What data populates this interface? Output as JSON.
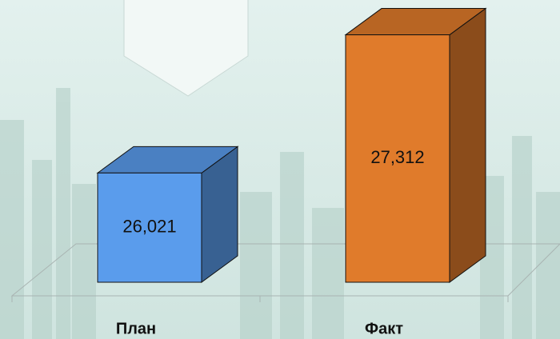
{
  "chart_data": {
    "type": "bar3d",
    "categories": [
      "План",
      "Факт"
    ],
    "values": [
      26021,
      27312
    ],
    "value_labels": [
      "26,021",
      "27,312"
    ],
    "colors": [
      "#5a9cec",
      "#e07b2b"
    ],
    "ylim": [
      25000,
      27600
    ]
  }
}
